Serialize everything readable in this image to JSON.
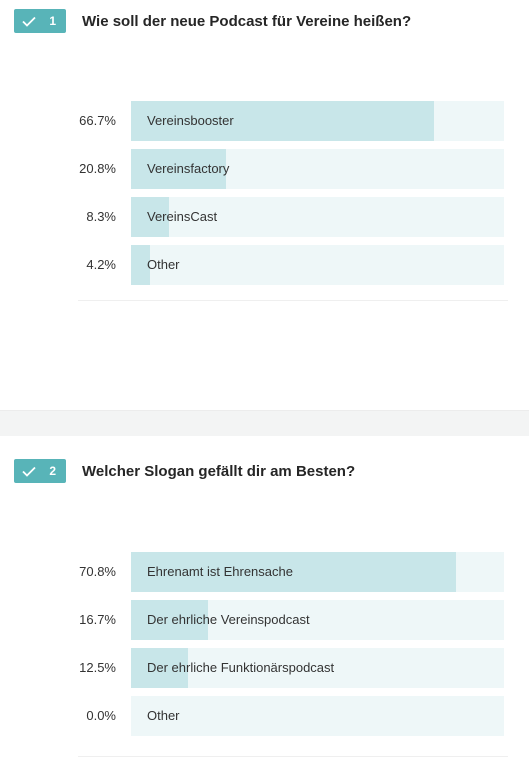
{
  "questions": [
    {
      "number": "1",
      "title": "Wie soll der neue Podcast für Vereine heißen?",
      "options": [
        {
          "percent_label": "66.7%",
          "label": "Vereinsbooster",
          "fraction": 0.813
        },
        {
          "percent_label": "20.8%",
          "label": "Vereinsfactory",
          "fraction": 0.256
        },
        {
          "percent_label": "8.3%",
          "label": "VereinsCast",
          "fraction": 0.102
        },
        {
          "percent_label": "4.2%",
          "label": "Other",
          "fraction": 0.051
        }
      ]
    },
    {
      "number": "2",
      "title": "Welcher Slogan gefällt dir am Besten?",
      "options": [
        {
          "percent_label": "70.8%",
          "label": "Ehrenamt ist Ehrensache",
          "fraction": 0.871
        },
        {
          "percent_label": "16.7%",
          "label": "Der ehrliche Vereinspodcast",
          "fraction": 0.206
        },
        {
          "percent_label": "12.5%",
          "label": "Der ehrliche Funktionärspodcast",
          "fraction": 0.154
        },
        {
          "percent_label": "0.0%",
          "label": "Other",
          "fraction": 0.0
        }
      ]
    }
  ],
  "colors": {
    "badge": "#58b4b8",
    "bar_fill": "#c8e6e9",
    "bar_track": "#eef7f8",
    "separator": "#f3f4f4"
  },
  "icons": {
    "badge_icon": "check-icon"
  }
}
